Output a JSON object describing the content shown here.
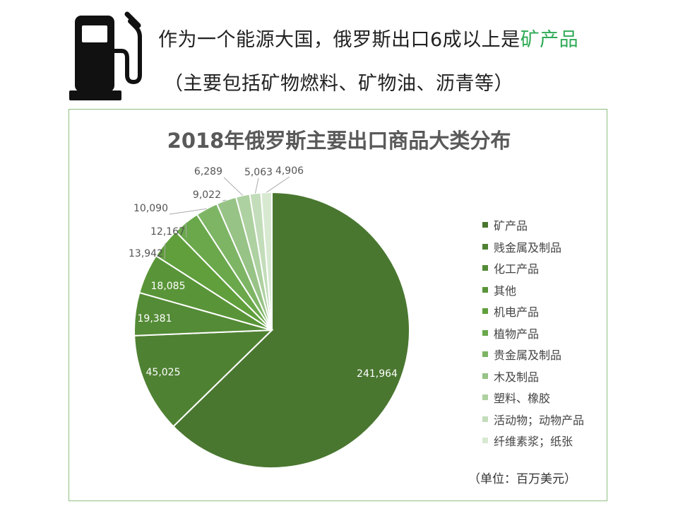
{
  "header": {
    "headline_main": "作为一个能源大国，俄罗斯出口6成以上是",
    "headline_highlight": "矿产品",
    "subhead": "（主要包括矿物燃料、矿物油、沥青等）",
    "icon": "fuel-pump-icon",
    "highlight_color": "#2eaa55"
  },
  "unit_note": "（单位：百万美元）",
  "chart_data": {
    "type": "pie",
    "title": "2018年俄罗斯主要出口商品大类分布",
    "legend_position": "right",
    "categories": [
      "矿产品",
      "贱金属及制品",
      "化工产品",
      "其他",
      "机电产品",
      "植物产品",
      "贵金属及制品",
      "木及制品",
      "塑料、橡胶",
      "活动物；动物产品",
      "纤维素浆；纸张"
    ],
    "values": [
      241964,
      45025,
      19381,
      18085,
      13942,
      12167,
      10090,
      9022,
      6289,
      5063,
      4906
    ],
    "value_labels": [
      "241,964",
      "45,025",
      "19,381",
      "18,085",
      "13,942",
      "12,167",
      "10,090",
      "9,022",
      "6,289",
      "5,063",
      "4,906"
    ],
    "colors": [
      "#4a7730",
      "#4f8133",
      "#548b36",
      "#599538",
      "#609f3c",
      "#6aa84b",
      "#7db565",
      "#97c386",
      "#add1a0",
      "#c3ddba",
      "#d8e9d2"
    ]
  }
}
